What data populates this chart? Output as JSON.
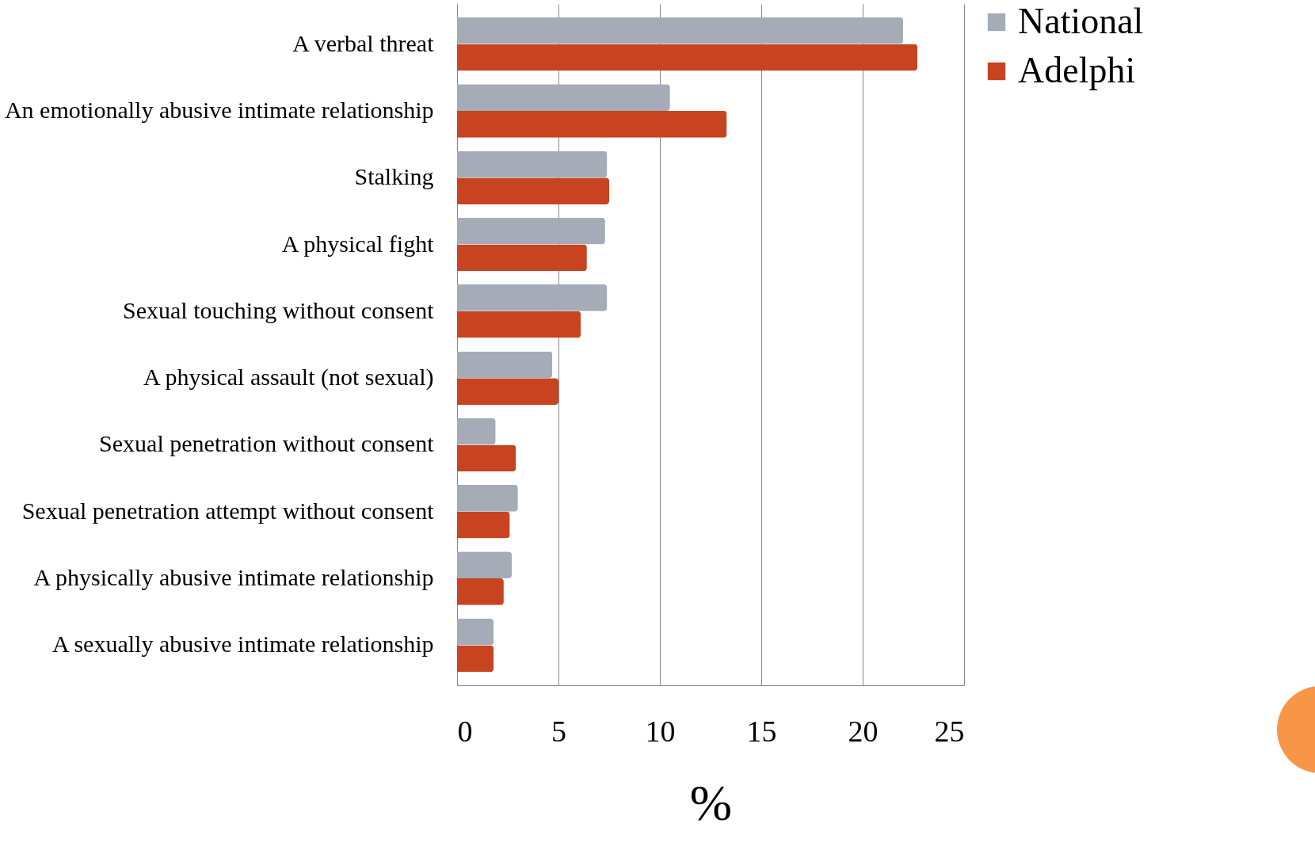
{
  "chart_data": {
    "type": "bar",
    "orientation": "horizontal",
    "xlabel": "%",
    "categories": [
      "A verbal threat",
      "An emotionally abusive intimate relationship",
      "Stalking",
      "A physical fight",
      "Sexual touching without consent",
      "A physical assault (not sexual)",
      "Sexual penetration without consent",
      "Sexual penetration attempt without consent",
      "A physically abusive intimate relationship",
      "A sexually abusive intimate relationship"
    ],
    "series": [
      {
        "name": "National",
        "color": "#a5acb8",
        "values": [
          22.0,
          10.5,
          7.4,
          7.3,
          7.4,
          4.7,
          1.9,
          3.0,
          2.7,
          1.8
        ]
      },
      {
        "name": "Adelphi",
        "color": "#c8431f",
        "values": [
          22.7,
          13.3,
          7.5,
          6.4,
          6.1,
          5.0,
          2.9,
          2.6,
          2.3,
          1.8
        ]
      }
    ],
    "xlim": [
      0,
      25
    ],
    "xticks": [
      0,
      5,
      10,
      15,
      20,
      25
    ],
    "grid": "x",
    "legend": "right"
  }
}
